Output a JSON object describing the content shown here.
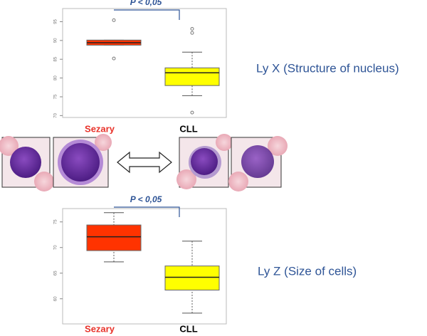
{
  "chart_data": [
    {
      "type": "box",
      "annotation": "P < 0,05",
      "side_label": "Ly X (Structure of nucleus)",
      "categories": [
        "Sezary",
        "CLL"
      ],
      "colors": [
        "#ff3300",
        "#ffff00"
      ],
      "label_colors": [
        "#e8322a",
        "#000000"
      ],
      "boxes": [
        {
          "min": 88.75,
          "q1": 88.75,
          "median": 89.4,
          "q3": 90.1,
          "max": 90.1,
          "outliers": [
            95.4,
            85.2
          ]
        },
        {
          "min": 75.3,
          "q1": 78,
          "median": 81.4,
          "q3": 82.7,
          "max": 86.9,
          "outliers": [
            93.1,
            92,
            70.8
          ]
        }
      ],
      "ylim": [
        69.5,
        98.5
      ],
      "yticks": [
        70,
        75,
        80,
        85,
        90,
        95
      ]
    },
    {
      "type": "box",
      "annotation": "P < 0,05",
      "side_label": "Ly Z (Size of cells)",
      "categories": [
        "Sezary",
        "CLL"
      ],
      "colors": [
        "#ff3300",
        "#ffff00"
      ],
      "label_colors": [
        "#e8322a",
        "#000000"
      ],
      "boxes": [
        {
          "min": 67.2,
          "q1": 69.4,
          "median": 72.1,
          "q3": 74.4,
          "max": 76.8,
          "outliers": []
        },
        {
          "min": 57.2,
          "q1": 61.7,
          "median": 64.2,
          "q3": 66.4,
          "max": 71.25,
          "outliers": []
        }
      ],
      "ylim": [
        55.1,
        77.6
      ],
      "yticks": [
        60,
        65,
        70,
        75
      ]
    }
  ]
}
